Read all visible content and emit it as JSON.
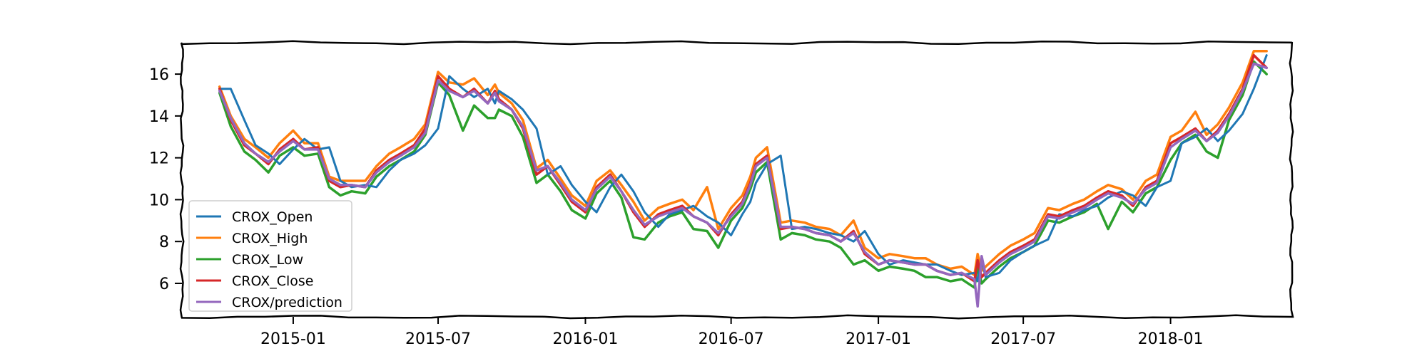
{
  "chart_data": {
    "type": "line",
    "title": "",
    "xlabel": "",
    "ylabel": "",
    "xlim": [
      "2014-08-15",
      "2018-06-01"
    ],
    "ylim": [
      4.4,
      17.5
    ],
    "grid": false,
    "legend_position": "lower-left",
    "x_ticks": [
      "2015-01",
      "2015-07",
      "2016-01",
      "2016-07",
      "2017-01",
      "2017-07",
      "2018-01"
    ],
    "y_ticks": [
      6,
      8,
      10,
      12,
      14,
      16
    ],
    "series": [
      {
        "name": "CROX_Open",
        "color": "#1f77b4"
      },
      {
        "name": "CROX_High",
        "color": "#ff7f0e"
      },
      {
        "name": "CROX_Low",
        "color": "#2ca02c"
      },
      {
        "name": "CROX_Close",
        "color": "#d62728"
      },
      {
        "name": "CROX/prediction",
        "color": "#9467bd"
      }
    ],
    "dates": [
      "2014-10-01",
      "2014-10-15",
      "2014-11-01",
      "2014-11-15",
      "2014-12-01",
      "2014-12-15",
      "2015-01-01",
      "2015-01-15",
      "2015-02-01",
      "2015-02-15",
      "2015-03-01",
      "2015-03-15",
      "2015-04-01",
      "2015-04-15",
      "2015-05-01",
      "2015-05-15",
      "2015-06-01",
      "2015-06-15",
      "2015-07-01",
      "2015-07-15",
      "2015-08-01",
      "2015-08-15",
      "2015-09-01",
      "2015-09-10",
      "2015-09-15",
      "2015-10-01",
      "2015-10-15",
      "2015-11-01",
      "2015-11-15",
      "2015-12-01",
      "2015-12-15",
      "2016-01-01",
      "2016-01-15",
      "2016-02-01",
      "2016-02-15",
      "2016-03-01",
      "2016-03-15",
      "2016-04-01",
      "2016-04-15",
      "2016-05-01",
      "2016-05-15",
      "2016-06-01",
      "2016-06-15",
      "2016-07-01",
      "2016-07-15",
      "2016-07-25",
      "2016-08-01",
      "2016-08-15",
      "2016-09-01",
      "2016-09-15",
      "2016-10-01",
      "2016-10-15",
      "2016-11-01",
      "2016-11-15",
      "2016-12-01",
      "2016-12-15",
      "2017-01-01",
      "2017-01-15",
      "2017-02-01",
      "2017-02-15",
      "2017-03-01",
      "2017-03-15",
      "2017-04-01",
      "2017-04-15",
      "2017-05-01",
      "2017-05-05",
      "2017-05-10",
      "2017-05-15",
      "2017-06-01",
      "2017-06-15",
      "2017-07-01",
      "2017-07-15",
      "2017-08-01",
      "2017-08-15",
      "2017-09-01",
      "2017-09-15",
      "2017-10-01",
      "2017-10-15",
      "2017-11-01",
      "2017-11-15",
      "2017-12-01",
      "2017-12-15",
      "2018-01-01",
      "2018-01-15",
      "2018-02-01",
      "2018-02-15",
      "2018-03-01",
      "2018-03-15",
      "2018-04-01",
      "2018-04-15",
      "2018-05-01"
    ],
    "close": [
      15.3,
      13.8,
      12.6,
      12.2,
      11.7,
      12.4,
      12.9,
      12.4,
      12.5,
      10.9,
      10.6,
      10.7,
      10.6,
      11.4,
      11.9,
      12.2,
      12.6,
      13.4,
      15.9,
      15.3,
      14.9,
      15.3,
      14.6,
      15.2,
      14.8,
      14.3,
      13.4,
      11.2,
      11.6,
      10.7,
      9.9,
      9.4,
      10.6,
      11.2,
      10.4,
      9.4,
      8.7,
      9.3,
      9.5,
      9.7,
      9.2,
      8.9,
      8.3,
      9.3,
      9.9,
      10.8,
      11.7,
      12.1,
      8.6,
      8.7,
      8.6,
      8.4,
      8.3,
      8.0,
      8.5,
      7.4,
      6.9,
      7.1,
      7.0,
      6.9,
      6.9,
      6.6,
      6.4,
      6.5,
      6.1,
      7.1,
      6.3,
      6.5,
      7.1,
      7.5,
      7.8,
      8.1,
      9.3,
      9.2,
      9.5,
      9.7,
      10.1,
      10.4,
      10.2,
      9.7,
      10.6,
      10.9,
      12.7,
      13.0,
      13.4,
      12.8,
      13.3,
      14.1,
      15.3,
      16.9,
      16.3
    ],
    "high": [
      15.4,
      14.0,
      12.9,
      12.5,
      12.0,
      12.7,
      13.3,
      12.7,
      12.7,
      11.1,
      10.9,
      10.9,
      10.9,
      11.6,
      12.2,
      12.5,
      12.9,
      13.6,
      16.1,
      15.6,
      15.5,
      15.8,
      15.0,
      15.5,
      15.1,
      14.6,
      13.8,
      11.5,
      11.9,
      11.0,
      10.2,
      9.7,
      10.9,
      11.4,
      10.7,
      9.9,
      9.0,
      9.6,
      9.8,
      10.0,
      9.5,
      10.6,
      8.6,
      9.6,
      10.2,
      11.1,
      12.0,
      12.5,
      8.9,
      9.0,
      8.9,
      8.7,
      8.6,
      8.3,
      9.0,
      7.7,
      7.2,
      7.4,
      7.3,
      7.2,
      7.2,
      6.9,
      6.7,
      6.8,
      6.4,
      7.4,
      6.6,
      6.8,
      7.4,
      7.8,
      8.1,
      8.4,
      9.6,
      9.5,
      9.8,
      10.0,
      10.4,
      10.7,
      10.5,
      10.0,
      10.9,
      11.2,
      13.0,
      13.3,
      14.2,
      13.1,
      13.6,
      14.4,
      15.6,
      17.1,
      17.1
    ],
    "low": [
      15.1,
      13.5,
      12.3,
      11.9,
      11.3,
      12.1,
      12.5,
      12.1,
      12.2,
      10.6,
      10.2,
      10.4,
      10.3,
      11.1,
      11.6,
      11.9,
      12.3,
      13.1,
      15.6,
      15.0,
      13.3,
      14.5,
      13.9,
      13.9,
      14.3,
      14.0,
      13.0,
      10.8,
      11.2,
      10.4,
      9.5,
      9.1,
      10.3,
      10.9,
      10.1,
      8.2,
      8.1,
      8.9,
      9.2,
      9.4,
      8.6,
      8.5,
      7.7,
      9.0,
      9.6,
      10.5,
      11.3,
      11.8,
      8.1,
      8.4,
      8.3,
      8.1,
      8.0,
      7.7,
      6.9,
      7.1,
      6.6,
      6.8,
      6.7,
      6.6,
      6.3,
      6.3,
      6.1,
      6.2,
      5.8,
      6.8,
      6.0,
      6.2,
      6.8,
      7.2,
      7.5,
      7.8,
      9.0,
      8.9,
      9.2,
      9.4,
      9.8,
      8.6,
      9.9,
      9.4,
      10.3,
      10.6,
      11.9,
      12.7,
      13.1,
      12.3,
      12.0,
      13.8,
      15.0,
      16.6,
      16.0
    ],
    "prediction": [
      15.2,
      13.9,
      12.7,
      12.2,
      11.8,
      12.3,
      12.8,
      12.4,
      12.4,
      11.0,
      10.7,
      10.7,
      10.6,
      11.3,
      11.8,
      12.1,
      12.5,
      13.2,
      15.7,
      15.2,
      14.9,
      15.2,
      14.6,
      15.1,
      14.7,
      14.3,
      13.5,
      11.4,
      11.6,
      10.8,
      10.0,
      9.5,
      10.5,
      11.1,
      10.4,
      9.5,
      8.8,
      9.2,
      9.4,
      9.6,
      9.2,
      8.9,
      8.4,
      9.2,
      9.8,
      10.7,
      11.6,
      12.0,
      8.7,
      8.7,
      8.6,
      8.4,
      8.3,
      8.0,
      8.4,
      7.5,
      6.9,
      7.1,
      7.0,
      6.9,
      6.9,
      6.6,
      6.4,
      6.5,
      6.2,
      4.9,
      7.3,
      6.4,
      7.0,
      7.4,
      7.7,
      8.0,
      9.2,
      9.1,
      9.4,
      9.6,
      10.0,
      10.3,
      10.1,
      9.8,
      10.5,
      10.8,
      12.5,
      12.9,
      13.3,
      12.8,
      13.2,
      14.0,
      15.2,
      16.5,
      16.3
    ]
  }
}
